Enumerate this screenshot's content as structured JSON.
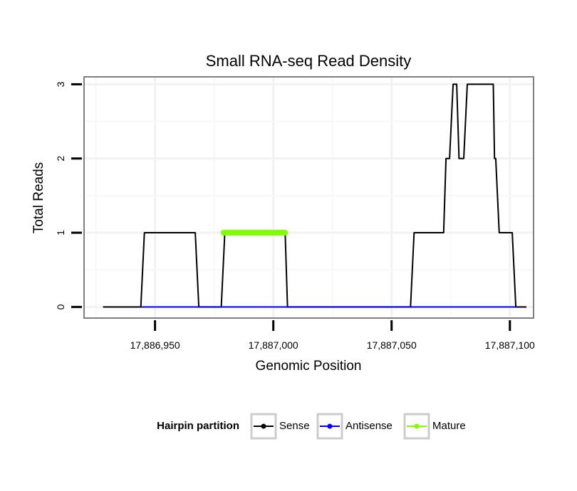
{
  "chart_data": {
    "type": "line",
    "title": "Small RNA-seq Read Density",
    "xlabel": "Genomic Position",
    "ylabel": "Total Reads",
    "xlim": [
      17886920,
      17887110
    ],
    "ylim": [
      -0.15,
      3.1
    ],
    "x_ticks": [
      17886950,
      17887000,
      17887050,
      17887100
    ],
    "x_tick_labels": [
      "17,886,950",
      "17,887,000",
      "17,887,050",
      "17,887,100"
    ],
    "y_ticks": [
      0,
      1,
      2,
      3
    ],
    "y_tick_labels": [
      "0",
      "1",
      "2",
      "3"
    ],
    "grid": true,
    "legend": {
      "title": "Hairpin partition",
      "position": "bottom",
      "entries": [
        {
          "label": "Sense",
          "color": "#000000"
        },
        {
          "label": "Antisense",
          "color": "#0000ff"
        },
        {
          "label": "Mature",
          "color": "#7fff00"
        }
      ]
    },
    "series": [
      {
        "name": "Sense",
        "color": "#000000",
        "width": 2,
        "points": [
          [
            17886928,
            0
          ],
          [
            17886944,
            0
          ],
          [
            17886945.5,
            1
          ],
          [
            17886967,
            1
          ],
          [
            17886968.5,
            0
          ],
          [
            17886978,
            0
          ],
          [
            17886979.5,
            1
          ],
          [
            17887005,
            1
          ],
          [
            17887006,
            0
          ],
          [
            17887058,
            0
          ],
          [
            17887059.5,
            1
          ],
          [
            17887072,
            1
          ],
          [
            17887073,
            2
          ],
          [
            17887074.5,
            2
          ],
          [
            17887076,
            3
          ],
          [
            17887077.5,
            3
          ],
          [
            17887078.5,
            2
          ],
          [
            17887080.5,
            2
          ],
          [
            17887082,
            3
          ],
          [
            17887093,
            3
          ],
          [
            17887093.5,
            2
          ],
          [
            17887094,
            2
          ],
          [
            17887095.5,
            1
          ],
          [
            17887101,
            1
          ],
          [
            17887102.5,
            0
          ],
          [
            17887107,
            0
          ]
        ]
      },
      {
        "name": "Antisense",
        "color": "#0000ff",
        "width": 2,
        "points": [
          [
            17886944,
            0
          ],
          [
            17886968.5,
            0
          ],
          [
            17886978,
            0
          ],
          [
            17887006,
            0
          ],
          [
            17887058,
            0
          ],
          [
            17887102.5,
            0
          ]
        ]
      },
      {
        "name": "Mature",
        "color": "#7fff00",
        "width": 8,
        "points": [
          [
            17886979,
            1
          ],
          [
            17887005,
            1
          ]
        ]
      }
    ]
  }
}
